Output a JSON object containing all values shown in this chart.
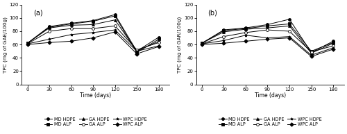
{
  "time": [
    0,
    30,
    60,
    90,
    120,
    150,
    180
  ],
  "panel_a": {
    "MD_HDPE": [
      62,
      87,
      92,
      96,
      105,
      50,
      71
    ],
    "MD_ALP": [
      62,
      86,
      91,
      95,
      103,
      48,
      68
    ],
    "GA_HDPE": [
      62,
      85,
      89,
      90,
      97,
      50,
      65
    ],
    "GA_ALP": [
      61,
      80,
      84,
      84,
      88,
      52,
      63
    ],
    "WPC_HDPE": [
      61,
      68,
      75,
      78,
      82,
      50,
      58
    ],
    "WPC_ALP": [
      60,
      63,
      65,
      70,
      79,
      46,
      57
    ]
  },
  "panel_b": {
    "MD_HDPE": [
      62,
      82,
      85,
      90,
      98,
      48,
      65
    ],
    "MD_ALP": [
      62,
      81,
      84,
      88,
      91,
      50,
      63
    ],
    "GA_HDPE": [
      62,
      79,
      83,
      85,
      88,
      47,
      62
    ],
    "GA_ALP": [
      61,
      72,
      78,
      82,
      80,
      49,
      58
    ],
    "WPC_HDPE": [
      61,
      66,
      74,
      70,
      72,
      44,
      55
    ],
    "WPC_ALP": [
      60,
      62,
      65,
      68,
      70,
      42,
      53
    ]
  },
  "ylim": [
    0,
    120
  ],
  "yticks": [
    0,
    20,
    40,
    60,
    80,
    100,
    120
  ],
  "xticks": [
    0,
    30,
    60,
    90,
    120,
    150,
    180
  ],
  "xlabel": "Time (days)",
  "ylabel_a": "TPC (mg of GAE/100g)",
  "ylabel_b": "TPC (mg of GAR/100g)",
  "label_a": "(a)",
  "label_b": "(b)",
  "series_labels": [
    "MD HDPE",
    "MD ALP",
    "GA HDPE",
    "GA ALP",
    "WPC HDPE",
    "WPC ALP"
  ],
  "series_keys": [
    "MD_HDPE",
    "MD_ALP",
    "GA_HDPE",
    "GA_ALP",
    "WPC_HDPE",
    "WPC_ALP"
  ],
  "markers": [
    "o",
    "s",
    "^",
    "o",
    "*",
    "D"
  ],
  "marker_fills": [
    "black",
    "black",
    "black",
    "white",
    "black",
    "black"
  ],
  "background_color": "#ffffff",
  "fontsize": 5.5,
  "legend_order_a": [
    "MD_HDPE",
    "MD_ALP",
    "GA_HDPE",
    "GA_ALP",
    "WPC_HDPE",
    "WPC_ALP"
  ],
  "legend_labels_a": [
    "MD HDPE",
    "MD ALP",
    "GA HDPE",
    "GA ALP",
    "WPC HDPE",
    "WPC ALP"
  ],
  "legend_order_b": [
    "MD_HDPE",
    "MD_ALP",
    "GA_HDPE",
    "GA_ALP",
    "WPC_HDPE",
    "WPC_ALP"
  ],
  "legend_labels_b": [
    "MD HDPE",
    "MD ALP",
    "GA HDPE",
    "GA ALP",
    "WPC HDPE",
    "WPC ALP"
  ]
}
